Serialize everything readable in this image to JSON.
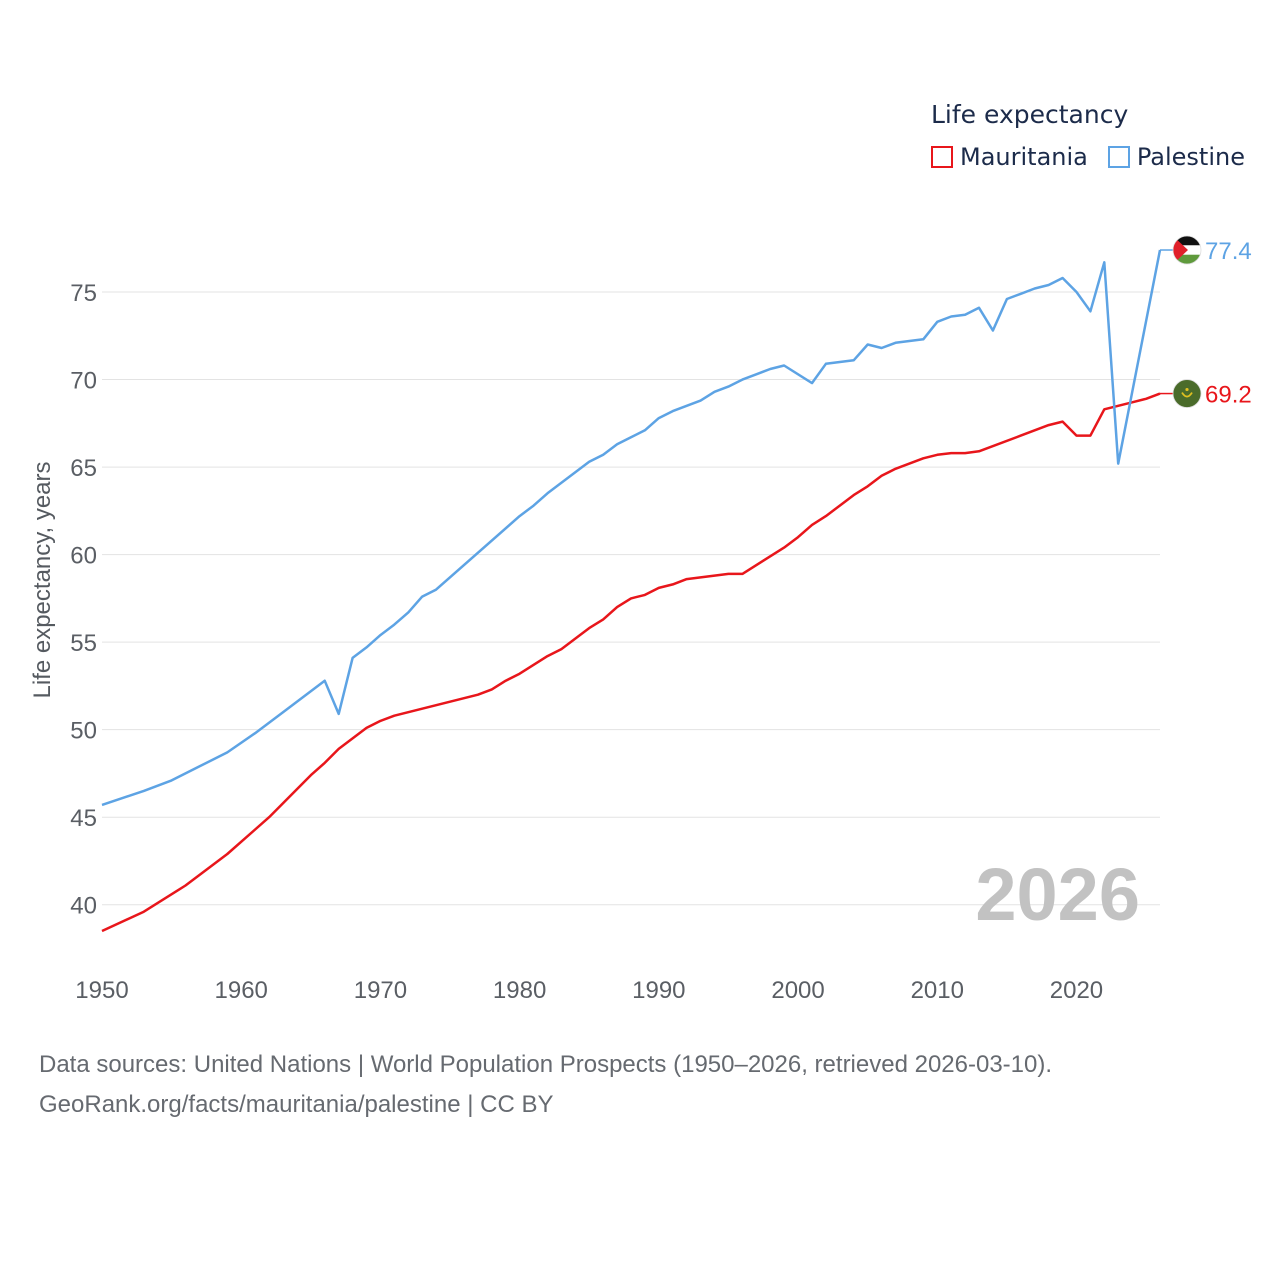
{
  "chart_data": {
    "type": "line",
    "legend_title": "Life expectancy",
    "ylabel": "Life expectancy, years",
    "xlabel": "",
    "xlim": [
      1950,
      2026
    ],
    "ylim": [
      36.5,
      79
    ],
    "yticks": [
      40,
      45,
      50,
      55,
      60,
      65,
      70,
      75
    ],
    "xticks": [
      1950,
      1960,
      1970,
      1980,
      1990,
      2000,
      2010,
      2020
    ],
    "year_label": "2026",
    "grid": true,
    "legend_position": "top-right",
    "series": [
      {
        "name": "Mauritania",
        "color": "#e8161b",
        "end_label": "69.2",
        "flag": "mauritania",
        "points": [
          [
            1950,
            38.5
          ],
          [
            1953,
            39.6
          ],
          [
            1956,
            41.1
          ],
          [
            1959,
            42.9
          ],
          [
            1962,
            45.0
          ],
          [
            1965,
            47.4
          ],
          [
            1966,
            48.1
          ],
          [
            1967,
            48.9
          ],
          [
            1969,
            50.1
          ],
          [
            1970,
            50.5
          ],
          [
            1971,
            50.8
          ],
          [
            1974,
            51.4
          ],
          [
            1977,
            52.0
          ],
          [
            1978,
            52.3
          ],
          [
            1979,
            52.8
          ],
          [
            1980,
            53.2
          ],
          [
            1982,
            54.2
          ],
          [
            1983,
            54.6
          ],
          [
            1985,
            55.8
          ],
          [
            1986,
            56.3
          ],
          [
            1987,
            57.0
          ],
          [
            1988,
            57.5
          ],
          [
            1989,
            57.7
          ],
          [
            1990,
            58.1
          ],
          [
            1991,
            58.3
          ],
          [
            1992,
            58.6
          ],
          [
            1995,
            58.9
          ],
          [
            1996,
            58.9
          ],
          [
            1999,
            60.4
          ],
          [
            2000,
            61.0
          ],
          [
            2001,
            61.7
          ],
          [
            2002,
            62.2
          ],
          [
            2003,
            62.8
          ],
          [
            2004,
            63.4
          ],
          [
            2005,
            63.9
          ],
          [
            2006,
            64.5
          ],
          [
            2007,
            64.9
          ],
          [
            2008,
            65.2
          ],
          [
            2009,
            65.5
          ],
          [
            2010,
            65.7
          ],
          [
            2011,
            65.8
          ],
          [
            2012,
            65.8
          ],
          [
            2013,
            65.9
          ],
          [
            2016,
            66.8
          ],
          [
            2018,
            67.4
          ],
          [
            2019,
            67.6
          ],
          [
            2020,
            66.8
          ],
          [
            2021,
            66.8
          ],
          [
            2022,
            68.3
          ],
          [
            2023,
            68.5
          ],
          [
            2024,
            68.7
          ],
          [
            2025,
            68.9
          ],
          [
            2026,
            69.2
          ]
        ]
      },
      {
        "name": "Palestine",
        "color": "#5da3e4",
        "end_label": "77.4",
        "flag": "palestine",
        "points": [
          [
            1950,
            45.7
          ],
          [
            1953,
            46.5
          ],
          [
            1955,
            47.1
          ],
          [
            1957,
            47.9
          ],
          [
            1959,
            48.7
          ],
          [
            1961,
            49.8
          ],
          [
            1963,
            51.0
          ],
          [
            1966,
            52.8
          ],
          [
            1967,
            50.9
          ],
          [
            1968,
            54.1
          ],
          [
            1969,
            54.7
          ],
          [
            1970,
            55.4
          ],
          [
            1971,
            56.0
          ],
          [
            1972,
            56.7
          ],
          [
            1973,
            57.6
          ],
          [
            1974,
            58.0
          ],
          [
            1980,
            62.2
          ],
          [
            1981,
            62.8
          ],
          [
            1982,
            63.5
          ],
          [
            1985,
            65.3
          ],
          [
            1986,
            65.7
          ],
          [
            1987,
            66.3
          ],
          [
            1988,
            66.7
          ],
          [
            1989,
            67.1
          ],
          [
            1990,
            67.8
          ],
          [
            1991,
            68.2
          ],
          [
            1992,
            68.5
          ],
          [
            1993,
            68.8
          ],
          [
            1994,
            69.3
          ],
          [
            1995,
            69.6
          ],
          [
            1996,
            70.0
          ],
          [
            1997,
            70.3
          ],
          [
            1998,
            70.6
          ],
          [
            1999,
            70.8
          ],
          [
            2001,
            69.8
          ],
          [
            2002,
            70.9
          ],
          [
            2003,
            71.0
          ],
          [
            2004,
            71.1
          ],
          [
            2005,
            72.0
          ],
          [
            2006,
            71.8
          ],
          [
            2007,
            72.1
          ],
          [
            2008,
            72.2
          ],
          [
            2009,
            72.3
          ],
          [
            2010,
            73.3
          ],
          [
            2011,
            73.6
          ],
          [
            2012,
            73.7
          ],
          [
            2013,
            74.1
          ],
          [
            2014,
            72.8
          ],
          [
            2015,
            74.6
          ],
          [
            2016,
            74.9
          ],
          [
            2017,
            75.2
          ],
          [
            2018,
            75.4
          ],
          [
            2019,
            75.8
          ],
          [
            2020,
            75.0
          ],
          [
            2021,
            73.9
          ],
          [
            2022,
            76.7
          ],
          [
            2023,
            65.2
          ],
          [
            2026,
            77.4
          ]
        ]
      }
    ]
  },
  "footer": {
    "sources_line": "Data sources: United Nations | World Population Prospects (1950–2026, retrieved 2026-03-10).",
    "url_line": "GeoRank.org/facts/mauritania/palestine | CC BY"
  }
}
